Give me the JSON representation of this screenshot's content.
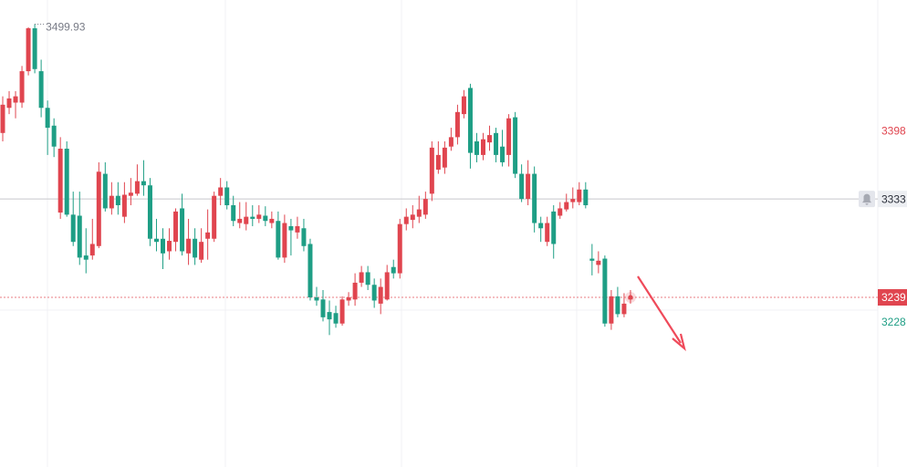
{
  "chart_data": {
    "type": "candlestick",
    "up_color": "#e0454f",
    "down_color": "#1e9e85",
    "ylim": [
      3077,
      3523
    ],
    "high_label_index": 5,
    "open": [
      3396,
      3420,
      3425,
      3425,
      3455,
      3496,
      3455,
      3420,
      3403,
      3320,
      3381,
      3318,
      3317,
      3279,
      3279,
      3288,
      3357,
      3324,
      3336,
      3316,
      3336,
      3338,
      3350,
      3346,
      3295,
      3295,
      3283,
      3292,
      3324,
      3281,
      3295,
      3275,
      3295,
      3295,
      3336,
      3344,
      3327,
      3310,
      3309,
      3316,
      3314,
      3317,
      3310,
      3312,
      3277,
      3307,
      3301,
      3305,
      3290,
      3239,
      3237,
      3225,
      3224,
      3214,
      3236,
      3237,
      3253,
      3263,
      3251,
      3233,
      3237,
      3268,
      3262,
      3309,
      3313,
      3316,
      3318,
      3338,
      3361,
      3363,
      3383,
      3392,
      3414,
      3439,
      3388,
      3375,
      3387,
      3396,
      3383,
      3375,
      3411,
      3357,
      3333,
      3357,
      3310,
      3292,
      3321,
      3317,
      3323,
      3330,
      3330,
      3342,
      3276,
      3270,
      3276,
      3214,
      3240,
      3223,
      3237
    ],
    "high": [
      3431,
      3436,
      3436,
      3460,
      3497,
      3499.93,
      3466,
      3427,
      3410,
      3392,
      3388,
      3340,
      3340,
      3305,
      3314,
      3368,
      3368,
      3349,
      3349,
      3349,
      3353,
      3366,
      3370,
      3353,
      3314,
      3305,
      3305,
      3324,
      3338,
      3314,
      3305,
      3305,
      3323,
      3340,
      3353,
      3350,
      3336,
      3330,
      3330,
      3327,
      3327,
      3326,
      3321,
      3321,
      3318,
      3314,
      3316,
      3314,
      3295,
      3249,
      3246,
      3236,
      3231,
      3240,
      3244,
      3262,
      3269,
      3269,
      3257,
      3257,
      3270,
      3275,
      3314,
      3324,
      3327,
      3336,
      3340,
      3388,
      3388,
      3388,
      3401,
      3423,
      3437,
      3443,
      3396,
      3396,
      3403,
      3401,
      3399,
      3414,
      3416,
      3366,
      3370,
      3364,
      3316,
      3316,
      3327,
      3330,
      3338,
      3344,
      3349,
      3349,
      3290,
      3283,
      3279,
      3246,
      3249,
      3243,
      3246
    ],
    "low": [
      3388,
      3414,
      3410,
      3420,
      3451,
      3453,
      3411,
      3375,
      3373,
      3314,
      3316,
      3288,
      3270,
      3262,
      3275,
      3286,
      3321,
      3318,
      3318,
      3310,
      3327,
      3336,
      3336,
      3288,
      3283,
      3266,
      3275,
      3283,
      3279,
      3270,
      3270,
      3272,
      3275,
      3292,
      3327,
      3323,
      3307,
      3305,
      3303,
      3307,
      3310,
      3307,
      3305,
      3275,
      3272,
      3279,
      3295,
      3283,
      3236,
      3231,
      3216,
      3203,
      3210,
      3212,
      3231,
      3231,
      3249,
      3246,
      3229,
      3223,
      3236,
      3257,
      3257,
      3303,
      3305,
      3310,
      3314,
      3331,
      3357,
      3357,
      3379,
      3385,
      3410,
      3362,
      3368,
      3370,
      3379,
      3368,
      3364,
      3364,
      3353,
      3330,
      3327,
      3301,
      3292,
      3288,
      3276,
      3314,
      3321,
      3324,
      3327,
      3324,
      3260,
      3262,
      3211,
      3208,
      3220,
      3220,
      3233
    ],
    "close": [
      3423,
      3429,
      3431,
      3455,
      3496,
      3457,
      3420,
      3401,
      3383,
      3381,
      3318,
      3292,
      3277,
      3275,
      3290,
      3359,
      3324,
      3336,
      3327,
      3337,
      3339,
      3350,
      3346,
      3295,
      3292,
      3281,
      3293,
      3321,
      3283,
      3295,
      3277,
      3292,
      3301,
      3336,
      3344,
      3327,
      3312,
      3314,
      3316,
      3314,
      3318,
      3312,
      3314,
      3277,
      3310,
      3303,
      3307,
      3288,
      3239,
      3236,
      3220,
      3218,
      3214,
      3237,
      3239,
      3253,
      3263,
      3251,
      3236,
      3249,
      3263,
      3262,
      3309,
      3316,
      3318,
      3323,
      3333,
      3382,
      3375,
      3382,
      3392,
      3416,
      3431,
      3377,
      3375,
      3390,
      3394,
      3375,
      3368,
      3410,
      3357,
      3333,
      3357,
      3310,
      3305,
      3310,
      3290,
      3324,
      3330,
      3333,
      3342,
      3327,
      3274,
      3274,
      3214,
      3240,
      3223,
      3233,
      3239
    ],
    "price_lines": [
      {
        "value": 3398,
        "color": "#e0454f",
        "label_style": "plain",
        "line": "none"
      },
      {
        "value": 3333,
        "color": "#c8c8cc",
        "label_style": "light-box",
        "line": "solid",
        "bell": true
      },
      {
        "value": 3239,
        "color": "#e0454f",
        "label_style": "box",
        "line": "dotted"
      },
      {
        "value": 3228,
        "color": "#1e9e85",
        "label_style": "plain",
        "line": "none"
      }
    ]
  }
}
